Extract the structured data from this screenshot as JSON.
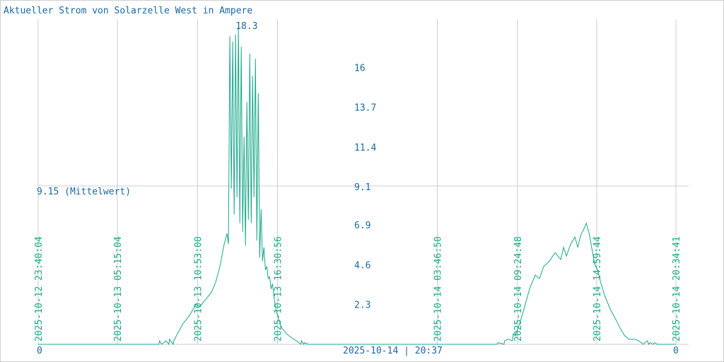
{
  "colors": {
    "title": "#1a6aa3",
    "series": "#1aa88a",
    "axis_text": "#1a6aa3",
    "grid": "#cccccc"
  },
  "chart_data": {
    "type": "line",
    "title": "Aktueller Strom von Solarzelle West in Ampere",
    "unit": "Ampere",
    "ylim": [
      0,
      18.3
    ],
    "y_ticks": [
      "2.3",
      "4.6",
      "6.9",
      "9.1",
      "11.4",
      "13.7",
      "16"
    ],
    "max_label": "18.3",
    "mean": {
      "value": 9.15,
      "label": "9.15 (Mittelwert)"
    },
    "x_end_label": "2025-10-14 | 20:37",
    "left_zero_label": "0",
    "right_zero_label": "0",
    "grid": true,
    "x_ticks": [
      {
        "label": "2025-10-12 23:40:04",
        "t": 0
      },
      {
        "label": "2025-10-13 05:15:04",
        "t": 5.58
      },
      {
        "label": "2025-10-13 10:53:00",
        "t": 11.22
      },
      {
        "label": "2025-10-13 16:30:56",
        "t": 16.85
      },
      {
        "label": "2025-10-14 03:46:50",
        "t": 28.11
      },
      {
        "label": "2025-10-14 09:24:48",
        "t": 33.75
      },
      {
        "label": "2025-10-14 14:59:44",
        "t": 39.33
      },
      {
        "label": "2025-10-14 20:34:41",
        "t": 44.91
      }
    ],
    "series": [
      {
        "x": [
          0,
          8.5,
          8.55,
          8.7,
          9.0,
          9.2,
          9.25,
          9.5,
          9.55,
          9.8,
          10.2,
          10.6,
          10.9,
          11.1,
          11.4,
          11.8,
          12.2,
          12.5,
          12.8,
          13.1,
          13.3,
          13.4,
          13.5,
          13.6,
          13.7,
          13.8,
          13.9,
          14.0,
          14.1,
          14.2,
          14.3,
          14.4,
          14.5,
          14.6,
          14.7,
          14.8,
          14.9,
          15.0,
          15.1,
          15.2,
          15.3,
          15.4,
          15.5,
          15.6,
          15.7,
          15.8,
          15.9,
          16.0,
          16.1,
          16.2,
          16.3,
          16.4,
          16.5,
          16.6,
          16.7,
          16.8,
          16.9,
          17.0,
          17.2,
          17.5,
          17.8,
          18.2,
          18.5,
          18.55,
          18.7,
          18.75,
          19.0,
          19.4,
          32.3,
          32.4,
          32.8,
          32.85,
          33.1,
          33.4,
          33.45,
          33.6,
          33.9,
          34.2,
          34.6,
          35.0,
          35.3,
          35.6,
          36.0,
          36.4,
          36.8,
          37.0,
          37.2,
          37.5,
          37.8,
          38.0,
          38.2,
          38.4,
          38.6,
          38.8,
          39.0,
          39.2,
          39.4,
          39.6,
          39.9,
          40.3,
          40.7,
          41.0,
          41.3,
          41.6,
          42.0,
          42.3,
          42.6,
          42.9,
          43.0,
          43.1,
          43.3,
          43.4,
          43.6,
          44.9
        ],
        "values": [
          0,
          0,
          0.2,
          0,
          0.2,
          0,
          0.3,
          0,
          0.2,
          0.6,
          1.2,
          1.6,
          2.0,
          2.3,
          2.2,
          2.6,
          3.0,
          3.6,
          4.5,
          5.8,
          6.4,
          5.8,
          17.8,
          9.0,
          17.5,
          7.5,
          17.9,
          8.5,
          18.3,
          7.0,
          17.2,
          6.5,
          12.0,
          5.7,
          14.0,
          7.2,
          16.8,
          7.0,
          15.5,
          8.5,
          16.5,
          6.0,
          14.5,
          5.0,
          7.8,
          4.8,
          5.6,
          4.3,
          4.5,
          3.8,
          3.9,
          3.2,
          3.5,
          2.8,
          2.2,
          1.8,
          1.6,
          1.2,
          0.9,
          0.6,
          0.4,
          0.2,
          0,
          0.2,
          0,
          0.1,
          0,
          0,
          0,
          0.1,
          0,
          0.2,
          0.3,
          0.2,
          0.6,
          0.5,
          1.2,
          2.0,
          3.2,
          4.0,
          3.8,
          4.5,
          4.8,
          5.3,
          4.9,
          5.6,
          5.1,
          5.8,
          6.2,
          5.6,
          6.3,
          6.6,
          7.0,
          6.4,
          5.5,
          4.6,
          4.3,
          3.6,
          2.8,
          2.0,
          1.4,
          0.9,
          0.5,
          0.3,
          0.3,
          0.2,
          0,
          0.2,
          0,
          0.1,
          0,
          0.1,
          0,
          0
        ]
      }
    ]
  }
}
